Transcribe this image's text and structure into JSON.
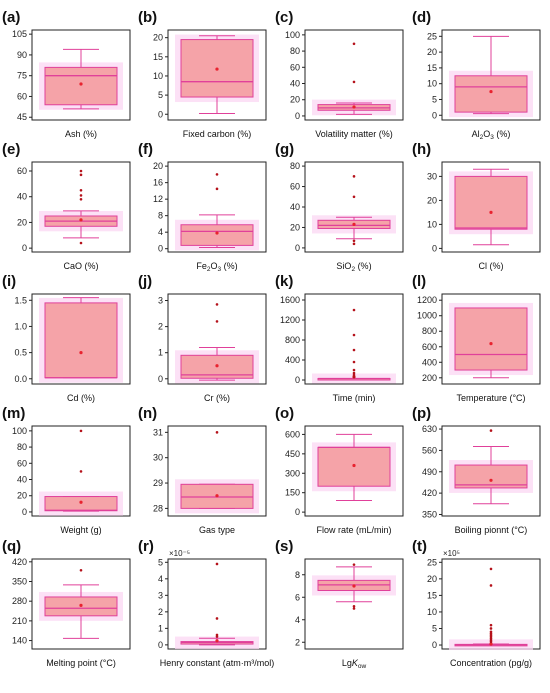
{
  "style": {
    "box_fill": "#f5a3a8",
    "box_stroke": "#e0409a",
    "glow": "#fbd7f3",
    "mean_color": "#e8232f",
    "outlier_color": "#b5121b",
    "axis_color": "#222222"
  },
  "panels": [
    {
      "letter": "(a)",
      "xlabel": "Ash (%)",
      "ticks": [
        45,
        60,
        75,
        90,
        105
      ],
      "tick_labels": [
        "45",
        "60",
        "75",
        "90",
        "105"
      ],
      "ylim": [
        43,
        108
      ],
      "box": {
        "min": 51,
        "q1": 54,
        "median": 75,
        "q3": 81,
        "max": 94,
        "mean": 69
      },
      "outliers": []
    },
    {
      "letter": "(b)",
      "xlabel": "Fixed  carbon (%)",
      "ticks": [
        0,
        5,
        10,
        15,
        20
      ],
      "tick_labels": [
        "0",
        "5",
        "10",
        "15",
        "20"
      ],
      "ylim": [
        -1.5,
        22
      ],
      "box": {
        "min": 0.2,
        "q1": 4.5,
        "median": 8.5,
        "q3": 19.5,
        "max": 20.5,
        "mean": 11.8
      },
      "outliers": []
    },
    {
      "letter": "(c)",
      "xlabel": "Volatility  matter (%)",
      "ticks": [
        0,
        20,
        40,
        60,
        80,
        100
      ],
      "tick_labels": [
        "0",
        "20",
        "40",
        "60",
        "80",
        "100"
      ],
      "ylim": [
        -5,
        106
      ],
      "box": {
        "min": 2,
        "q1": 7,
        "median": 10,
        "q3": 14,
        "max": 16,
        "mean": 11
      },
      "outliers": [
        42,
        89
      ]
    },
    {
      "letter": "(d)",
      "xlabel": "Al2O3 (%)",
      "xlabel_parts": [
        "Al",
        "2",
        "O",
        "3",
        " (%)"
      ],
      "ticks": [
        0,
        5,
        10,
        15,
        20,
        25
      ],
      "tick_labels": [
        "0",
        "5",
        "10",
        "15",
        "20",
        "25"
      ],
      "ylim": [
        -1.5,
        27
      ],
      "box": {
        "min": 0.5,
        "q1": 1,
        "median": 9,
        "q3": 12.5,
        "max": 25,
        "mean": 7.5
      },
      "outliers": []
    },
    {
      "letter": "(e)",
      "xlabel": "CaO (%)",
      "ticks": [
        0,
        20,
        40,
        60
      ],
      "tick_labels": [
        "0",
        "20",
        "40",
        "60"
      ],
      "ylim": [
        -3,
        67
      ],
      "box": {
        "min": 8,
        "q1": 17,
        "median": 21,
        "q3": 25,
        "max": 29,
        "mean": 22
      },
      "outliers": [
        4,
        38,
        41,
        45,
        57,
        60
      ]
    },
    {
      "letter": "(f)",
      "xlabel": "Fe2O3 (%)",
      "xlabel_parts": [
        "Fe",
        "2",
        "O",
        "3",
        " (%)"
      ],
      "ticks": [
        0,
        4,
        8,
        12,
        16,
        20
      ],
      "tick_labels": [
        "0",
        "4",
        "8",
        "12",
        "16",
        "20"
      ],
      "ylim": [
        -0.8,
        21
      ],
      "box": {
        "min": 0.3,
        "q1": 0.8,
        "median": 4.2,
        "q3": 5.8,
        "max": 8.2,
        "mean": 3.8
      },
      "outliers": [
        14.5,
        18
      ]
    },
    {
      "letter": "(g)",
      "xlabel": "SiO2 (%)",
      "xlabel_parts": [
        "SiO",
        "2",
        " (%)"
      ],
      "ticks": [
        0,
        20,
        40,
        60,
        80
      ],
      "tick_labels": [
        "0",
        "20",
        "40",
        "60",
        "80"
      ],
      "ylim": [
        -4,
        84
      ],
      "box": {
        "min": 9,
        "q1": 19,
        "median": 22,
        "q3": 27,
        "max": 30,
        "mean": 23
      },
      "outliers": [
        4,
        7,
        50,
        70
      ]
    },
    {
      "letter": "(h)",
      "xlabel": "Cl (%)",
      "ticks": [
        0,
        10,
        20,
        30
      ],
      "tick_labels": [
        "0",
        "10",
        "20",
        "30"
      ],
      "ylim": [
        -1.5,
        36
      ],
      "box": {
        "min": 1.5,
        "q1": 8,
        "median": 8.5,
        "q3": 30,
        "max": 33,
        "mean": 15
      },
      "outliers": []
    },
    {
      "letter": "(i)",
      "xlabel": "Cd (%)",
      "ticks": [
        0,
        0.5,
        1,
        1.5
      ],
      "tick_labels": [
        "0.0",
        "0.5",
        "1.0",
        "1.5"
      ],
      "ylim": [
        -0.1,
        1.62
      ],
      "box": {
        "min": 0.02,
        "q1": 0.02,
        "median": 0.02,
        "q3": 1.45,
        "max": 1.55,
        "mean": 0.5
      },
      "outliers": []
    },
    {
      "letter": "(j)",
      "xlabel": "Cr (%)",
      "ticks": [
        0,
        1,
        2,
        3
      ],
      "tick_labels": [
        "0",
        "1",
        "2",
        "3"
      ],
      "ylim": [
        -0.2,
        3.25
      ],
      "box": {
        "min": -0.05,
        "q1": 0.02,
        "median": 0.15,
        "q3": 0.9,
        "max": 1.2,
        "mean": 0.5
      },
      "outliers": [
        2.2,
        2.85
      ]
    },
    {
      "letter": "(k)",
      "xlabel": "Time (min)",
      "ticks": [
        0,
        400,
        800,
        1200,
        1600
      ],
      "tick_labels": [
        "0",
        "400",
        "800",
        "1200",
        "1600"
      ],
      "ylim": [
        -80,
        1720
      ],
      "box": {
        "min": 30,
        "q1": 30,
        "median": 30,
        "q3": 30,
        "max": 30,
        "mean": 60
      },
      "outliers": [
        60,
        100,
        140,
        200,
        360,
        600,
        900,
        1400
      ]
    },
    {
      "letter": "(l)",
      "xlabel": "Temperature (°C)",
      "ticks": [
        200,
        400,
        600,
        800,
        1000,
        1200
      ],
      "tick_labels": [
        "200",
        "400",
        "600",
        "800",
        "1000",
        "1200"
      ],
      "ylim": [
        120,
        1280
      ],
      "box": {
        "min": 200,
        "q1": 300,
        "median": 500,
        "q3": 1100,
        "max": 1100,
        "mean": 640
      },
      "outliers": []
    },
    {
      "letter": "(m)",
      "xlabel": "Weight (g)",
      "ticks": [
        0,
        20,
        40,
        60,
        80,
        100
      ],
      "tick_labels": [
        "0",
        "20",
        "40",
        "60",
        "80",
        "100"
      ],
      "ylim": [
        -5,
        106
      ],
      "box": {
        "min": 1,
        "q1": 1.5,
        "median": 2,
        "q3": 19,
        "max": 19,
        "mean": 12
      },
      "outliers": [
        50,
        100
      ]
    },
    {
      "letter": "(n)",
      "xlabel": "Gas type",
      "ticks": [
        28,
        29,
        30,
        31
      ],
      "tick_labels": [
        "28",
        "29",
        "30",
        "31"
      ],
      "ylim": [
        27.7,
        31.25
      ],
      "box": {
        "min": 28,
        "q1": 28,
        "median": 28.45,
        "q3": 28.95,
        "max": 28.95,
        "mean": 28.5
      },
      "outliers": [
        31
      ]
    },
    {
      "letter": "(o)",
      "xlabel": "Flow  rate (mL/min)",
      "ticks": [
        0,
        150,
        300,
        450,
        600
      ],
      "tick_labels": [
        "0",
        "150",
        "300",
        "450",
        "600"
      ],
      "ylim": [
        -30,
        665
      ],
      "box": {
        "min": 90,
        "q1": 200,
        "median": 500,
        "q3": 500,
        "max": 600,
        "mean": 360
      },
      "outliers": []
    },
    {
      "letter": "(p)",
      "xlabel": "Boiling  pionnt (°C)",
      "ticks": [
        350,
        420,
        490,
        560,
        630
      ],
      "tick_labels": [
        "350",
        "420",
        "490",
        "560",
        "630"
      ],
      "ylim": [
        345,
        640
      ],
      "box": {
        "min": 385,
        "q1": 437,
        "median": 447,
        "q3": 512,
        "max": 573,
        "mean": 462
      },
      "outliers": [
        625
      ]
    },
    {
      "letter": "(q)",
      "xlabel": "Melting  point (°C)",
      "ticks": [
        140,
        210,
        280,
        350,
        420
      ],
      "tick_labels": [
        "140",
        "210",
        "280",
        "350",
        "420"
      ],
      "ylim": [
        110,
        430
      ],
      "box": {
        "min": 148,
        "q1": 228,
        "median": 255,
        "q3": 295,
        "max": 338,
        "mean": 265
      },
      "outliers": [
        390
      ]
    },
    {
      "letter": "(r)",
      "xlabel": "Henry  constant (atm·m³/mol)",
      "exponent": "×10⁻⁵",
      "ticks": [
        0,
        1,
        2,
        3,
        4,
        5
      ],
      "tick_labels": [
        "0",
        "1",
        "2",
        "3",
        "4",
        "5"
      ],
      "ylim": [
        -0.25,
        5.2
      ],
      "box": {
        "min": 0,
        "q1": 0.05,
        "median": 0.15,
        "q3": 0.2,
        "max": 0.4,
        "mean": 0.25
      },
      "outliers": [
        0.5,
        0.6,
        1.6,
        4.9
      ]
    },
    {
      "letter": "(s)",
      "xlabel": "LgKow",
      "xlabel_parts": [
        "Lg",
        "K",
        "ow"
      ],
      "ticks": [
        2,
        4,
        6,
        8
      ],
      "tick_labels": [
        "2",
        "4",
        "6",
        "8"
      ],
      "ylim": [
        1.4,
        9.4
      ],
      "box": {
        "min": 5.6,
        "q1": 6.6,
        "median": 7.1,
        "q3": 7.5,
        "max": 8.7,
        "mean": 7
      },
      "outliers": [
        5,
        5.2,
        8.9
      ]
    },
    {
      "letter": "(t)",
      "xlabel": "Concentration (pg/g)",
      "exponent": "×10⁵",
      "ticks": [
        0,
        5,
        10,
        15,
        20,
        25
      ],
      "tick_labels": [
        "0",
        "5",
        "10",
        "15",
        "20",
        "25"
      ],
      "ylim": [
        -1.2,
        26
      ],
      "box": {
        "min": 0,
        "q1": 0,
        "median": 0.1,
        "q3": 0.2,
        "max": 0.3,
        "mean": 0.3
      },
      "outliers": [
        1,
        1.5,
        2,
        2.5,
        3,
        3.5,
        4,
        5,
        6,
        18,
        23
      ]
    }
  ],
  "chart_data": [
    {
      "type": "box",
      "panel": "(a)",
      "xlabel": "Ash (%)",
      "ylim": [
        45,
        105
      ],
      "min": 51,
      "q1": 54,
      "median": 75,
      "q3": 81,
      "max": 94,
      "mean": 69,
      "outliers": []
    },
    {
      "type": "box",
      "panel": "(b)",
      "xlabel": "Fixed  carbon (%)",
      "ylim": [
        0,
        20
      ],
      "min": 0.2,
      "q1": 4.5,
      "median": 8.5,
      "q3": 19.5,
      "max": 20.5,
      "mean": 11.8,
      "outliers": []
    },
    {
      "type": "box",
      "panel": "(c)",
      "xlabel": "Volatility  matter (%)",
      "ylim": [
        0,
        100
      ],
      "min": 2,
      "q1": 7,
      "median": 10,
      "q3": 14,
      "max": 16,
      "mean": 11,
      "outliers": [
        42,
        89
      ]
    },
    {
      "type": "box",
      "panel": "(d)",
      "xlabel": "Al2O3 (%)",
      "ylim": [
        0,
        25
      ],
      "min": 0.5,
      "q1": 1,
      "median": 9,
      "q3": 12.5,
      "max": 25,
      "mean": 7.5,
      "outliers": []
    },
    {
      "type": "box",
      "panel": "(e)",
      "xlabel": "CaO (%)",
      "ylim": [
        0,
        60
      ],
      "min": 8,
      "q1": 17,
      "median": 21,
      "q3": 25,
      "max": 29,
      "mean": 22,
      "outliers": [
        4,
        38,
        41,
        45,
        57,
        60
      ]
    },
    {
      "type": "box",
      "panel": "(f)",
      "xlabel": "Fe2O3 (%)",
      "ylim": [
        0,
        20
      ],
      "min": 0.3,
      "q1": 0.8,
      "median": 4.2,
      "q3": 5.8,
      "max": 8.2,
      "mean": 3.8,
      "outliers": [
        14.5,
        18
      ]
    },
    {
      "type": "box",
      "panel": "(g)",
      "xlabel": "SiO2 (%)",
      "ylim": [
        0,
        80
      ],
      "min": 9,
      "q1": 19,
      "median": 22,
      "q3": 27,
      "max": 30,
      "mean": 23,
      "outliers": [
        4,
        7,
        50,
        70
      ]
    },
    {
      "type": "box",
      "panel": "(h)",
      "xlabel": "Cl (%)",
      "ylim": [
        0,
        30
      ],
      "min": 1.5,
      "q1": 8,
      "median": 8.5,
      "q3": 30,
      "max": 33,
      "mean": 15,
      "outliers": []
    },
    {
      "type": "box",
      "panel": "(i)",
      "xlabel": "Cd (%)",
      "ylim": [
        0,
        1.5
      ],
      "min": 0.02,
      "q1": 0.02,
      "median": 0.02,
      "q3": 1.45,
      "max": 1.55,
      "mean": 0.5,
      "outliers": []
    },
    {
      "type": "box",
      "panel": "(j)",
      "xlabel": "Cr (%)",
      "ylim": [
        0,
        3
      ],
      "min": -0.05,
      "q1": 0.02,
      "median": 0.15,
      "q3": 0.9,
      "max": 1.2,
      "mean": 0.5,
      "outliers": [
        2.2,
        2.85
      ]
    },
    {
      "type": "box",
      "panel": "(k)",
      "xlabel": "Time (min)",
      "ylim": [
        0,
        1600
      ],
      "min": 30,
      "q1": 30,
      "median": 30,
      "q3": 30,
      "max": 30,
      "mean": 60,
      "outliers": [
        60,
        100,
        140,
        200,
        360,
        600,
        900,
        1400
      ]
    },
    {
      "type": "box",
      "panel": "(l)",
      "xlabel": "Temperature (°C)",
      "ylim": [
        200,
        1200
      ],
      "min": 200,
      "q1": 300,
      "median": 500,
      "q3": 1100,
      "max": 1100,
      "mean": 640,
      "outliers": []
    },
    {
      "type": "box",
      "panel": "(m)",
      "xlabel": "Weight (g)",
      "ylim": [
        0,
        100
      ],
      "min": 1,
      "q1": 1.5,
      "median": 2,
      "q3": 19,
      "max": 19,
      "mean": 12,
      "outliers": [
        50,
        100
      ]
    },
    {
      "type": "box",
      "panel": "(n)",
      "xlabel": "Gas type",
      "ylim": [
        28,
        31
      ],
      "min": 28,
      "q1": 28,
      "median": 28.45,
      "q3": 28.95,
      "max": 28.95,
      "mean": 28.5,
      "outliers": [
        31
      ]
    },
    {
      "type": "box",
      "panel": "(o)",
      "xlabel": "Flow  rate (mL/min)",
      "ylim": [
        0,
        600
      ],
      "min": 90,
      "q1": 200,
      "median": 500,
      "q3": 500,
      "max": 600,
      "mean": 360,
      "outliers": []
    },
    {
      "type": "box",
      "panel": "(p)",
      "xlabel": "Boiling  pionnt (°C)",
      "ylim": [
        350,
        630
      ],
      "min": 385,
      "q1": 437,
      "median": 447,
      "q3": 512,
      "max": 573,
      "mean": 462,
      "outliers": [
        625
      ]
    },
    {
      "type": "box",
      "panel": "(q)",
      "xlabel": "Melting  point (°C)",
      "ylim": [
        140,
        420
      ],
      "min": 148,
      "q1": 228,
      "median": 255,
      "q3": 295,
      "max": 338,
      "mean": 265,
      "outliers": [
        390
      ]
    },
    {
      "type": "box",
      "panel": "(r)",
      "xlabel": "Henry  constant (atm·m³/mol)",
      "ylim": [
        0,
        5
      ],
      "min": 0,
      "q1": 0.05,
      "median": 0.15,
      "q3": 0.2,
      "max": 0.4,
      "mean": 0.25,
      "outliers": [
        0.5,
        0.6,
        1.6,
        4.9
      ]
    },
    {
      "type": "box",
      "panel": "(s)",
      "xlabel": "LgKow",
      "ylim": [
        2,
        8
      ],
      "min": 5.6,
      "q1": 6.6,
      "median": 7.1,
      "q3": 7.5,
      "max": 8.7,
      "mean": 7,
      "outliers": [
        5,
        5.2,
        8.9
      ]
    },
    {
      "type": "box",
      "panel": "(t)",
      "xlabel": "Concentration (pg/g)",
      "ylim": [
        0,
        25
      ],
      "min": 0,
      "q1": 0,
      "median": 0.1,
      "q3": 0.2,
      "max": 0.3,
      "mean": 0.3,
      "outliers": [
        1,
        1.5,
        2,
        2.5,
        3,
        3.5,
        4,
        5,
        6,
        18,
        23
      ]
    }
  ]
}
